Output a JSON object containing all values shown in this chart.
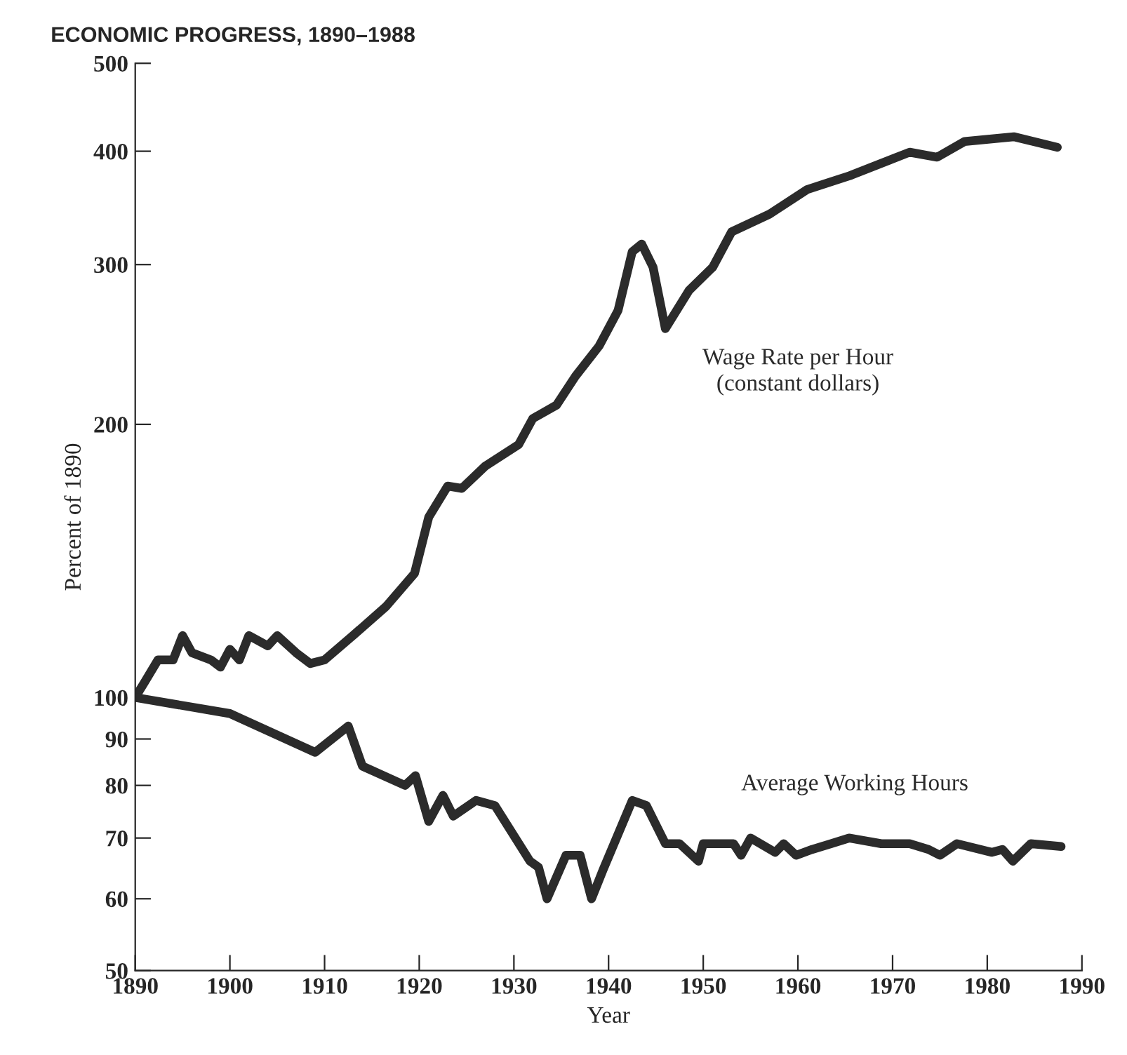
{
  "chart_data": {
    "type": "line",
    "title": "ECONOMIC PROGRESS, 1890–1988",
    "xlabel": "Year",
    "ylabel": "Percent of 1890",
    "log": "y",
    "xlim": [
      1890,
      1990
    ],
    "ylim": [
      50,
      500
    ],
    "xticks": [
      1890,
      1900,
      1910,
      1920,
      1930,
      1940,
      1950,
      1960,
      1970,
      1980,
      1990
    ],
    "yticks": [
      50,
      60,
      70,
      80,
      90,
      100,
      200,
      300,
      400,
      500
    ],
    "grid": false,
    "legend": false,
    "marker": "none",
    "line_style": "solid",
    "series": [
      {
        "name": "Wage Rate per Hour\n(constant dollars)",
        "color": "#2b2b2b",
        "x": [
          1890,
          1891,
          1892.4,
          1894,
          1895,
          1896,
          1898,
          1899,
          1900,
          1901,
          1902,
          1904,
          1905,
          1907,
          1908.5,
          1910,
          1913,
          1916.5,
          1919.5,
          1921,
          1923,
          1924.5,
          1927,
          1930.5,
          1932,
          1934.5,
          1936.5,
          1939,
          1941,
          1942.5,
          1943.5,
          1944.7,
          1946,
          1948.5,
          1951,
          1953,
          1957,
          1961,
          1965.5,
          1971.8,
          1974.7,
          1977.6,
          1982.8,
          1987.4
        ],
        "values": [
          100,
          104,
          110,
          110,
          117,
          112,
          110,
          108,
          113,
          110,
          117,
          114,
          117,
          112,
          109,
          110,
          117,
          126,
          137,
          158,
          171,
          170,
          180,
          190,
          203,
          210,
          226,
          244,
          267,
          310,
          316,
          298,
          255,
          281,
          298,
          326,
          341,
          363,
          376,
          399,
          394,
          410,
          415,
          404
        ]
      },
      {
        "name": "Average Working Hours",
        "color": "#2b2b2b",
        "x": [
          1890,
          1900,
          1909,
          1912.5,
          1914,
          1918.5,
          1919.6,
          1921,
          1922.5,
          1923.6,
          1926,
          1928,
          1931.7,
          1932.6,
          1933.5,
          1935.5,
          1937,
          1938.2,
          1939.4,
          1942.5,
          1944,
          1946,
          1947.5,
          1949.5,
          1950,
          1953.2,
          1954,
          1955,
          1957.6,
          1958.5,
          1959.8,
          1961.5,
          1963.5,
          1965.4,
          1968.8,
          1971.8,
          1973.8,
          1975,
          1976.8,
          1980.5,
          1981.6,
          1982.7,
          1984.6,
          1987.8
        ],
        "values": [
          100,
          96,
          87,
          93,
          84,
          80,
          82,
          73,
          78,
          74,
          77,
          76,
          66,
          65,
          60,
          67,
          67,
          60,
          64.5,
          77,
          76,
          69,
          69,
          66,
          69,
          69,
          67,
          70,
          67.5,
          69,
          67,
          68,
          69,
          70,
          69,
          69,
          68,
          67,
          69,
          67.5,
          68,
          66,
          69,
          68.5
        ]
      }
    ]
  }
}
